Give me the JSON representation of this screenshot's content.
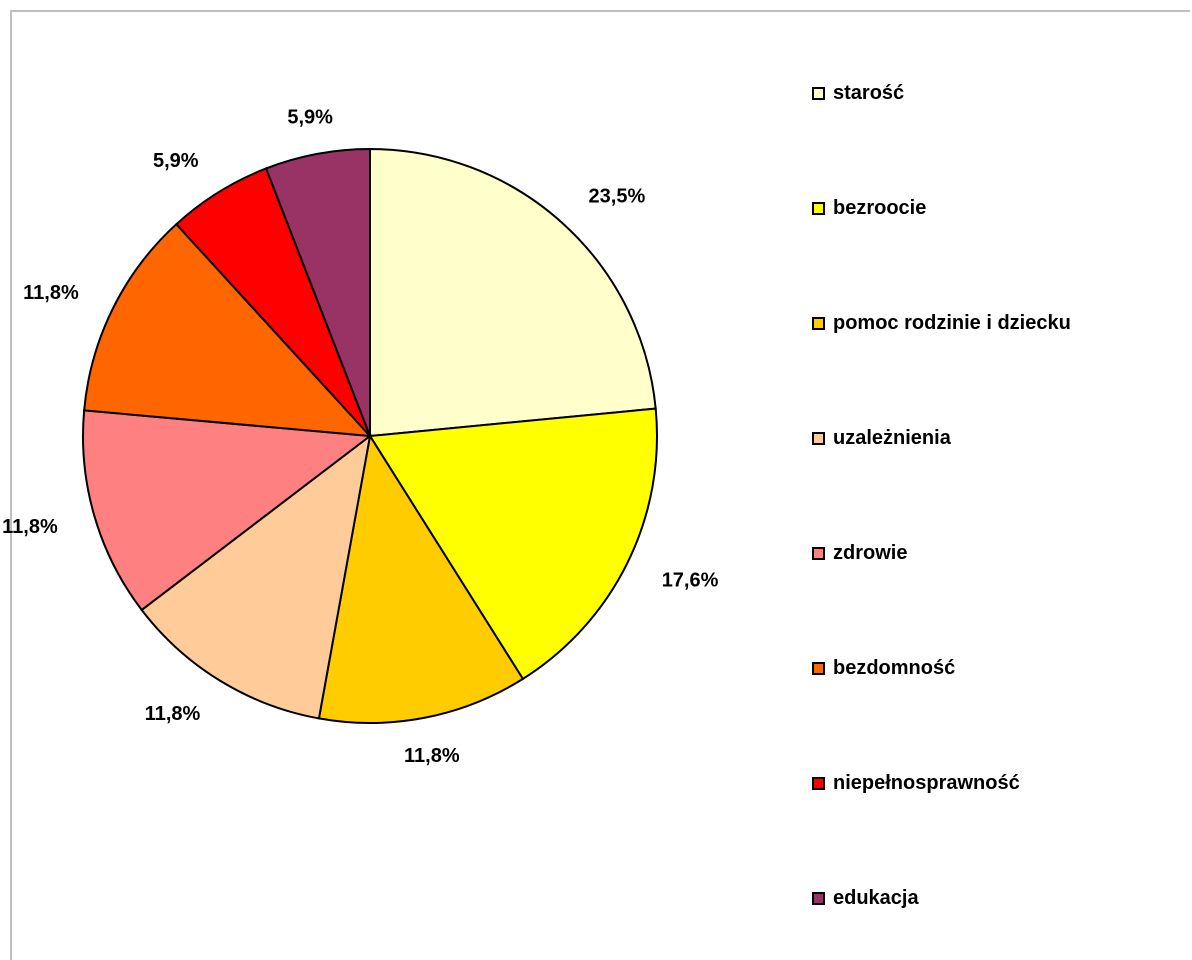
{
  "chart_data": {
    "type": "pie",
    "title": "",
    "unit": "%",
    "legend_position": "right",
    "slices": [
      {
        "label": "starość",
        "value": 23.5,
        "display": "23,5%",
        "color": "#FFFFCC"
      },
      {
        "label": "bezroocie",
        "value": 17.6,
        "display": "17,6%",
        "color": "#FFFF00"
      },
      {
        "label": "pomoc rodzinie i dziecku",
        "value": 11.8,
        "display": "11,8%",
        "color": "#FFCC00"
      },
      {
        "label": "uzależnienia",
        "value": 11.8,
        "display": "11,8%",
        "color": "#FFCC99"
      },
      {
        "label": "zdrowie",
        "value": 11.8,
        "display": "11,8%",
        "color": "#FF8080"
      },
      {
        "label": "bezdomność",
        "value": 11.8,
        "display": "11,8%",
        "color": "#FF6600"
      },
      {
        "label": "niepełnosprawność",
        "value": 5.9,
        "display": "5,9%",
        "color": "#FF0000"
      },
      {
        "label": "edukacja",
        "value": 5.9,
        "display": "5,9%",
        "color": "#993366"
      }
    ]
  }
}
